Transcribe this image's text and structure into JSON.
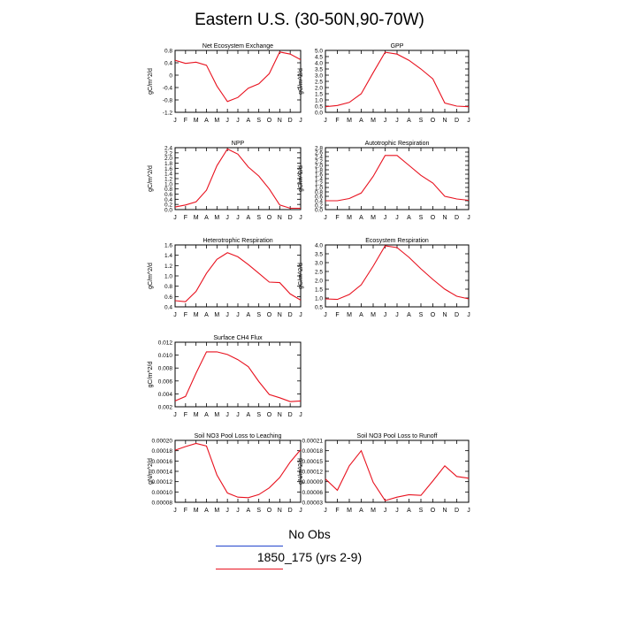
{
  "page_title": "Eastern U.S. (30-50N,90-70W)",
  "colors": {
    "line": "#e8121f",
    "obs": "#2244cc"
  },
  "legend": [
    {
      "label": "No Obs",
      "color": "#2244cc"
    },
    {
      "label": "1850_175 (yrs 2-9)",
      "color": "#e8121f"
    }
  ],
  "chart_data": [
    {
      "type": "line",
      "title": "Net Ecosystem Exchange",
      "ylabel": "gC/m^2/d",
      "categories": [
        "J",
        "F",
        "M",
        "A",
        "M",
        "J",
        "J",
        "A",
        "S",
        "O",
        "N",
        "D",
        "J"
      ],
      "ylim": [
        -1.2,
        0.8
      ],
      "ytick_labels": [
        "0.8",
        "0.4",
        "0",
        "-0.4",
        "-0.8",
        "-1.2"
      ],
      "series": [
        {
          "values": [
            0.48,
            0.38,
            0.42,
            0.32,
            -0.35,
            -0.85,
            -0.72,
            -0.42,
            -0.28,
            0.05,
            0.75,
            0.68,
            0.5
          ]
        }
      ]
    },
    {
      "type": "line",
      "title": "GPP",
      "ylabel": "gC/m^2/d",
      "categories": [
        "J",
        "F",
        "M",
        "A",
        "M",
        "J",
        "J",
        "A",
        "S",
        "O",
        "N",
        "D",
        "J"
      ],
      "ylim": [
        0.0,
        5.0
      ],
      "ytick_labels": [
        "5.0",
        "4.5",
        "4.0",
        "3.5",
        "3.0",
        "2.5",
        "2.0",
        "1.5",
        "1.0",
        "0.5",
        "0.0"
      ],
      "series": [
        {
          "values": [
            0.45,
            0.55,
            0.8,
            1.5,
            3.2,
            4.85,
            4.7,
            4.2,
            3.5,
            2.7,
            0.75,
            0.5,
            0.45
          ]
        }
      ]
    },
    {
      "type": "line",
      "title": "NPP",
      "ylabel": "gC/m^2/d",
      "categories": [
        "J",
        "F",
        "M",
        "A",
        "M",
        "J",
        "J",
        "A",
        "S",
        "O",
        "N",
        "D",
        "J"
      ],
      "ylim": [
        0.0,
        2.4
      ],
      "ytick_labels": [
        "2.4",
        "2.2",
        "2.0",
        "1.8",
        "1.6",
        "1.4",
        "1.2",
        "1.0",
        "0.8",
        "0.6",
        "0.4",
        "0.2",
        "0.0"
      ],
      "series": [
        {
          "values": [
            0.1,
            0.18,
            0.3,
            0.75,
            1.7,
            2.35,
            2.15,
            1.65,
            1.3,
            0.8,
            0.18,
            0.05,
            0.05
          ]
        }
      ]
    },
    {
      "type": "line",
      "title": "Autotrophic Respiration",
      "ylabel": "gC/m^2/d",
      "categories": [
        "J",
        "F",
        "M",
        "A",
        "M",
        "J",
        "J",
        "A",
        "S",
        "O",
        "N",
        "D",
        "J"
      ],
      "ylim": [
        0.0,
        2.8
      ],
      "ytick_labels": [
        "2.8",
        "2.6",
        "2.4",
        "2.2",
        "2.0",
        "1.8",
        "1.6",
        "1.4",
        "1.2",
        "1.0",
        "0.8",
        "0.6",
        "0.4",
        "0.2",
        "0.0"
      ],
      "series": [
        {
          "values": [
            0.4,
            0.4,
            0.5,
            0.75,
            1.5,
            2.45,
            2.45,
            2.0,
            1.55,
            1.2,
            0.6,
            0.48,
            0.42
          ]
        }
      ]
    },
    {
      "type": "line",
      "title": "Heterotrophic Respiration",
      "ylabel": "gC/m^2/d",
      "categories": [
        "J",
        "F",
        "M",
        "A",
        "M",
        "J",
        "J",
        "A",
        "S",
        "O",
        "N",
        "D",
        "J"
      ],
      "ylim": [
        0.4,
        1.6
      ],
      "ytick_labels": [
        "1.6",
        "1.4",
        "1.2",
        "1.0",
        "0.8",
        "0.6",
        "0.4"
      ],
      "series": [
        {
          "values": [
            0.52,
            0.5,
            0.7,
            1.05,
            1.32,
            1.45,
            1.37,
            1.22,
            1.05,
            0.88,
            0.87,
            0.65,
            0.53
          ]
        }
      ]
    },
    {
      "type": "line",
      "title": "Ecosystem Respiration",
      "ylabel": "gC/m^2/d",
      "categories": [
        "J",
        "F",
        "M",
        "A",
        "M",
        "J",
        "J",
        "A",
        "S",
        "O",
        "N",
        "D",
        "J"
      ],
      "ylim": [
        0.5,
        4.0
      ],
      "ytick_labels": [
        "4.0",
        "3.5",
        "3.0",
        "2.5",
        "2.0",
        "1.5",
        "1.0",
        "0.5"
      ],
      "series": [
        {
          "values": [
            0.95,
            0.92,
            1.2,
            1.75,
            2.8,
            3.95,
            3.85,
            3.3,
            2.65,
            2.05,
            1.5,
            1.1,
            0.95
          ]
        }
      ]
    },
    {
      "type": "line",
      "title": "Surface CH4 Flux",
      "ylabel": "gC/m^2/d",
      "categories": [
        "J",
        "F",
        "M",
        "A",
        "M",
        "J",
        "J",
        "A",
        "S",
        "O",
        "N",
        "D",
        "J"
      ],
      "ylim": [
        0.002,
        0.012
      ],
      "ytick_labels": [
        "0.012",
        "0.010",
        "0.008",
        "0.006",
        "0.004",
        "0.002"
      ],
      "series": [
        {
          "values": [
            0.0029,
            0.0036,
            0.0072,
            0.0105,
            0.0105,
            0.0101,
            0.0093,
            0.0082,
            0.0059,
            0.0039,
            0.0034,
            0.0028,
            0.0029
          ]
        }
      ]
    },
    {
      "type": "line",
      "title": "Soil NO3 Pool Loss to Leaching",
      "ylabel": "gN/m^2/d",
      "categories": [
        "J",
        "F",
        "M",
        "A",
        "M",
        "J",
        "J",
        "A",
        "S",
        "O",
        "N",
        "D",
        "J"
      ],
      "ylim": [
        8e-05,
        0.0002
      ],
      "ytick_labels": [
        "0.00020",
        "0.00018",
        "0.00016",
        "0.00014",
        "0.00012",
        "0.00010",
        "0.00008"
      ],
      "series": [
        {
          "values": [
            0.000181,
            0.000188,
            0.000194,
            0.000189,
            0.000133,
            9.8e-05,
            9e-05,
            8.9e-05,
            9.5e-05,
            0.000108,
            0.000128,
            0.000158,
            0.000182
          ]
        }
      ]
    },
    {
      "type": "line",
      "title": "Soil NO3 Pool Loss to Runoff",
      "ylabel": "gN/m^2/d",
      "categories": [
        "J",
        "F",
        "M",
        "A",
        "M",
        "J",
        "J",
        "A",
        "S",
        "O",
        "N",
        "D",
        "J"
      ],
      "ylim": [
        3e-05,
        0.00021
      ],
      "ytick_labels": [
        "0.00021",
        "0.00018",
        "0.00015",
        "0.00012",
        "0.00009",
        "0.00006",
        "0.00003"
      ],
      "series": [
        {
          "values": [
            9.8e-05,
            6.5e-05,
            0.000136,
            0.00018,
            8.8e-05,
            3.5e-05,
            4.5e-05,
            5.2e-05,
            5e-05,
            9.2e-05,
            0.000136,
            0.000105,
            0.0001
          ]
        }
      ]
    }
  ]
}
